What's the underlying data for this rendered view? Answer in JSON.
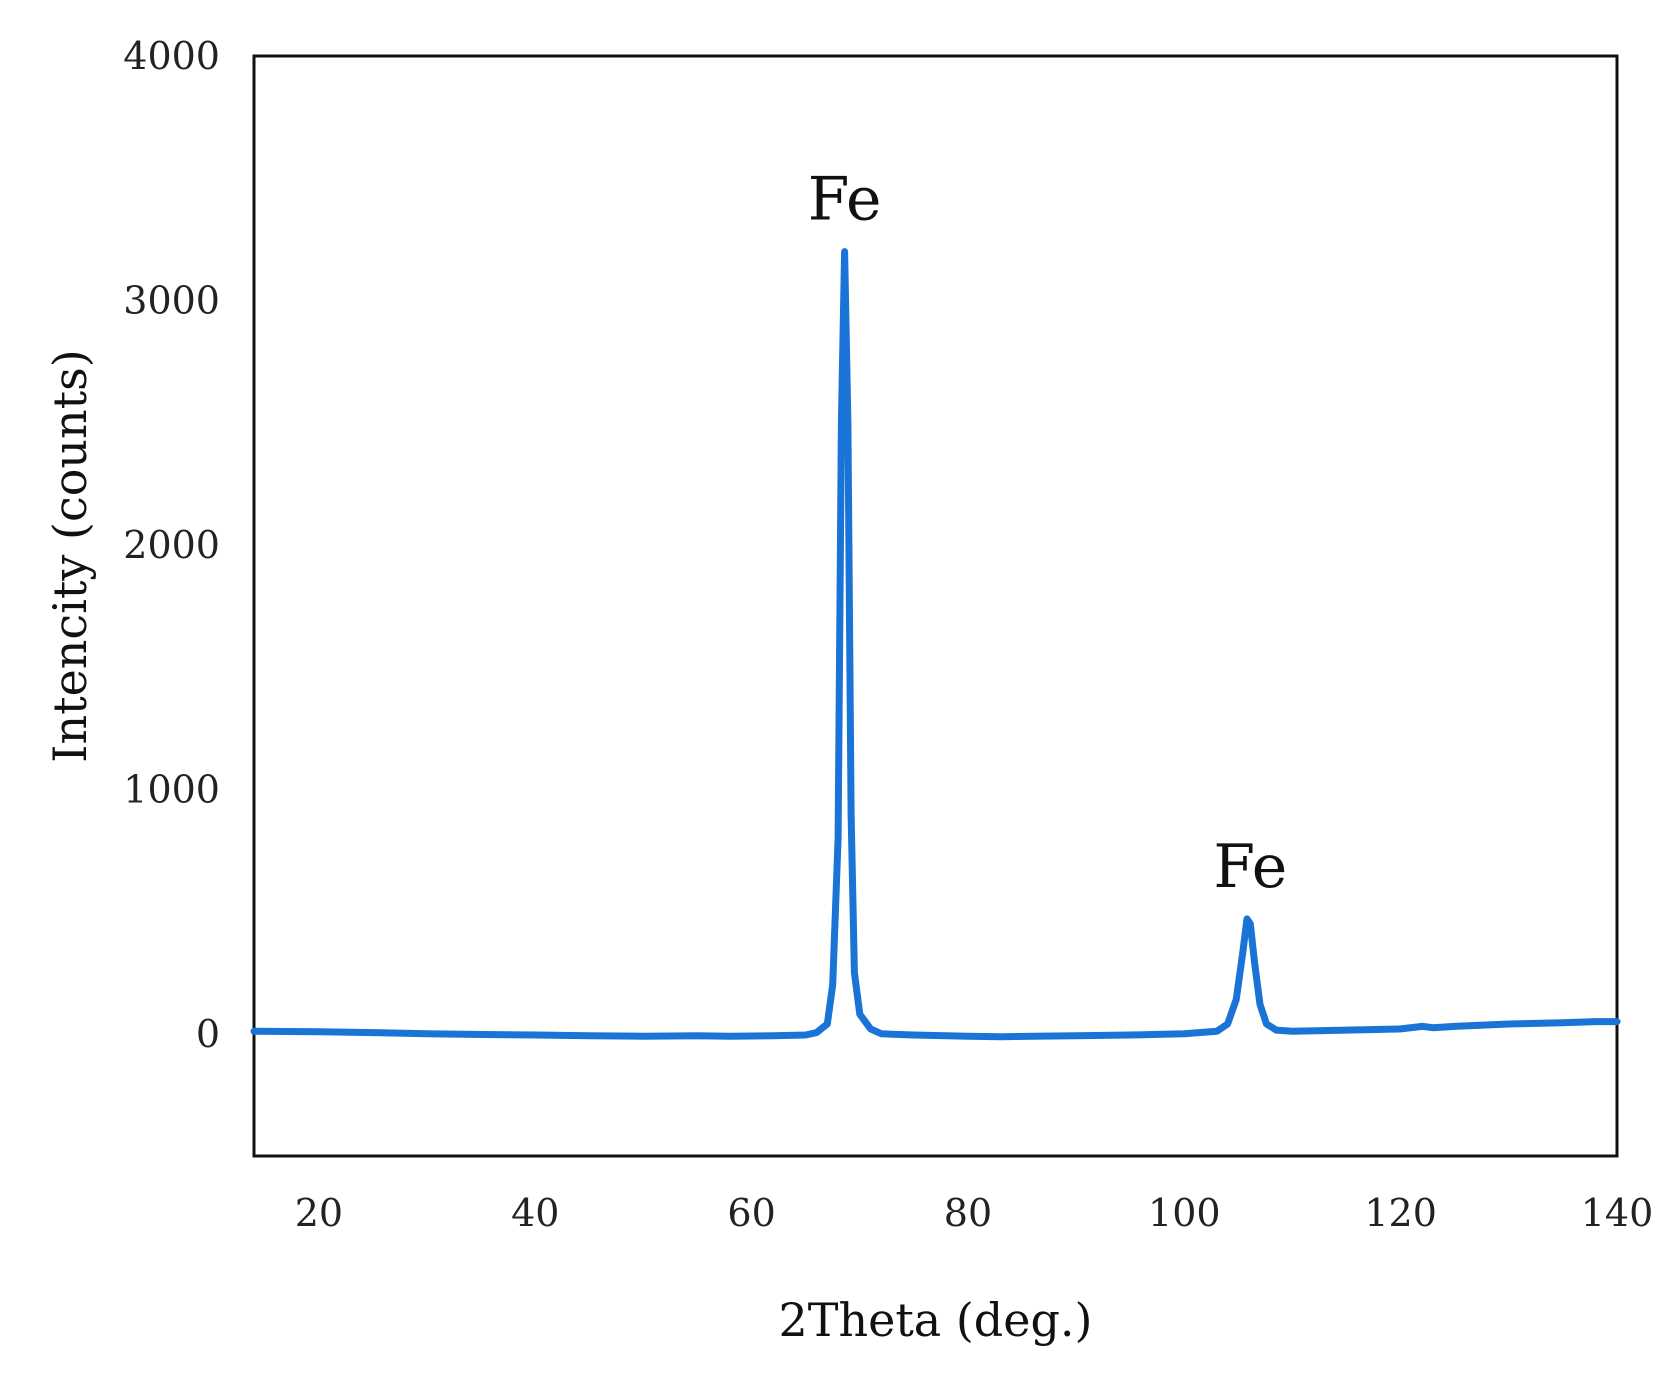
{
  "chart_data": {
    "type": "line",
    "title": "",
    "xlabel": "2Theta (deg.)",
    "ylabel": "Intencity (counts)",
    "xlim": [
      14,
      140
    ],
    "ylim": [
      -500,
      4000
    ],
    "x_ticks": [
      20,
      40,
      60,
      80,
      100,
      120,
      140
    ],
    "y_ticks": [
      0,
      1000,
      2000,
      3000,
      4000
    ],
    "grid": false,
    "legend": "none",
    "series": [
      {
        "color": "#1a73d6",
        "x": [
          14,
          20,
          25,
          30,
          35,
          40,
          45,
          50,
          55,
          58,
          62,
          65,
          66,
          67,
          67.5,
          68,
          68.3,
          68.6,
          68.9,
          69.2,
          69.5,
          70,
          71,
          72,
          75,
          80,
          83,
          86,
          90,
          95,
          100,
          103,
          104,
          104.8,
          105.4,
          105.8,
          106.1,
          106.5,
          107,
          107.6,
          108.5,
          110,
          115,
          120,
          122,
          123,
          125,
          130,
          135,
          138,
          140
        ],
        "y": [
          10,
          8,
          5,
          0,
          -3,
          -5,
          -8,
          -10,
          -8,
          -10,
          -8,
          -5,
          5,
          40,
          200,
          800,
          2500,
          3200,
          2500,
          900,
          250,
          80,
          20,
          0,
          -5,
          -10,
          -12,
          -10,
          -8,
          -5,
          0,
          10,
          40,
          140,
          330,
          470,
          450,
          290,
          120,
          40,
          15,
          10,
          15,
          20,
          30,
          25,
          30,
          40,
          45,
          50,
          50
        ]
      }
    ],
    "annotations": [
      {
        "text": "Fe",
        "x": 68.6,
        "y": 3200
      },
      {
        "text": "Fe",
        "x": 106.1,
        "y": 470
      }
    ]
  }
}
